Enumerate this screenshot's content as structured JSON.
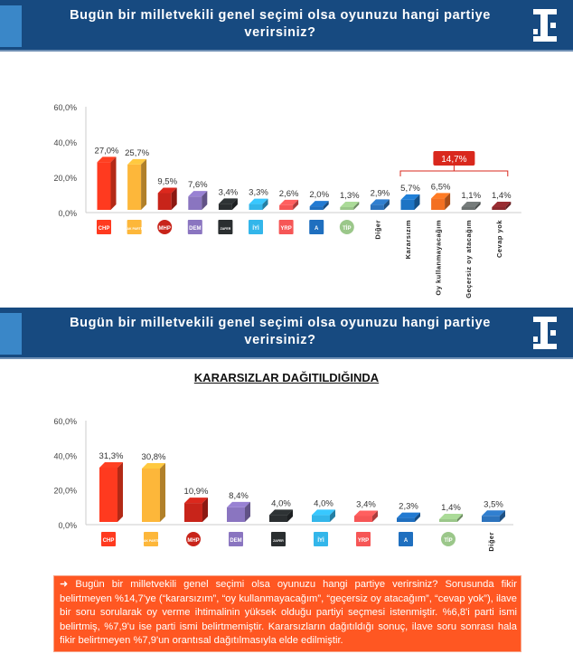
{
  "header": {
    "title": "Bugün bir milletvekili genel seçimi olsa oyunuzu hangi partiye verirsiniz?"
  },
  "subtitle": "KARARSIZLAR DAĞITILDIĞINDA",
  "note": "Bugün bir milletvekili genel seçimi olsa oyunuzu hangi partiye verirsiniz? Sorusunda fikir belirtmeyen %14,7'ye (“kararsızım”, “oy kullanmayacağım”, “geçersiz oy atacağım”, “cevap yok”), ilave bir soru sorularak oy verme ihtimalinin yüksek olduğu partiyi seçmesi istenmiştir. %6,8'i parti ismi belirtmiş, %7,9'u ise parti ismi belirtmemiştir. Kararsızların dağıtıldığı sonuç, ilave soru sonrası hala fikir belirtmeyen %7,9'un orantısal dağıtılmasıyla elde edilmiştir.",
  "chart_data": [
    {
      "type": "bar",
      "title": "Bugün bir milletvekili genel seçimi olsa oyunuzu hangi partiye verirsiniz?",
      "ylim": [
        0,
        60
      ],
      "yticks": [
        "0,0%",
        "20,0%",
        "40,0%",
        "60,0%"
      ],
      "categories": [
        {
          "logo": "CHP",
          "label": "",
          "color": "#ff3a1f"
        },
        {
          "logo": "AK PARTİ",
          "label": "",
          "color": "#fdb73a"
        },
        {
          "logo": "MHP",
          "label": "",
          "color": "#c8241a"
        },
        {
          "logo": "DEM",
          "label": "",
          "color": "#8a75c0"
        },
        {
          "logo": "ZAFER",
          "label": "",
          "color": "#2a2e30"
        },
        {
          "logo": "İYİ",
          "label": "",
          "color": "#33b6ea"
        },
        {
          "logo": "YRP",
          "label": "",
          "color": "#f65656"
        },
        {
          "logo": "A",
          "label": "",
          "color": "#1f6fbf"
        },
        {
          "logo": "TİP",
          "label": "",
          "color": "#9bc78a"
        },
        {
          "logo": "",
          "label": "Diğer",
          "color": "#2c73bd"
        },
        {
          "logo": "",
          "label": "Kararsızım",
          "color": "#1d74c4"
        },
        {
          "logo": "",
          "label": "Oy kullanmayacağım",
          "color": "#f37021"
        },
        {
          "logo": "",
          "label": "Geçersiz oy atacağım",
          "color": "#6b7170"
        },
        {
          "logo": "",
          "label": "Cevap yok",
          "color": "#8c2a2e"
        }
      ],
      "values": [
        27.0,
        25.7,
        9.5,
        7.6,
        3.4,
        3.3,
        2.6,
        2.0,
        1.3,
        2.9,
        5.7,
        6.5,
        1.1,
        1.4
      ],
      "value_labels": [
        "27,0%",
        "25,7%",
        "9,5%",
        "7,6%",
        "3,4%",
        "3,3%",
        "2,6%",
        "2,0%",
        "1,3%",
        "2,9%",
        "5,7%",
        "6,5%",
        "1,1%",
        "1,4%"
      ],
      "annotation": {
        "text": "14,7%",
        "span": "Kararsızım – Cevap yok",
        "color": "#d9281d"
      }
    },
    {
      "type": "bar",
      "title": "KARARSIZLAR DAĞITILDIĞINDA",
      "ylim": [
        0,
        60
      ],
      "yticks": [
        "0,0%",
        "20,0%",
        "40,0%",
        "60,0%"
      ],
      "categories": [
        {
          "logo": "CHP",
          "label": "",
          "color": "#ff3a1f"
        },
        {
          "logo": "AK PARTİ",
          "label": "",
          "color": "#fdb73a"
        },
        {
          "logo": "MHP",
          "label": "",
          "color": "#c8241a"
        },
        {
          "logo": "DEM",
          "label": "",
          "color": "#8a75c0"
        },
        {
          "logo": "ZAFER",
          "label": "",
          "color": "#2a2e30"
        },
        {
          "logo": "İYİ",
          "label": "",
          "color": "#33b6ea"
        },
        {
          "logo": "YRP",
          "label": "",
          "color": "#f65656"
        },
        {
          "logo": "A",
          "label": "",
          "color": "#1f6fbf"
        },
        {
          "logo": "TİP",
          "label": "",
          "color": "#9bc78a"
        },
        {
          "logo": "",
          "label": "Diğer",
          "color": "#2c73bd"
        }
      ],
      "values": [
        31.3,
        30.8,
        10.9,
        8.4,
        4.0,
        4.0,
        3.4,
        2.3,
        1.4,
        3.5
      ],
      "value_labels": [
        "31,3%",
        "30,8%",
        "10,9%",
        "8,4%",
        "4,0%",
        "4,0%",
        "3,4%",
        "2,3%",
        "1,4%",
        "3,5%"
      ]
    }
  ]
}
